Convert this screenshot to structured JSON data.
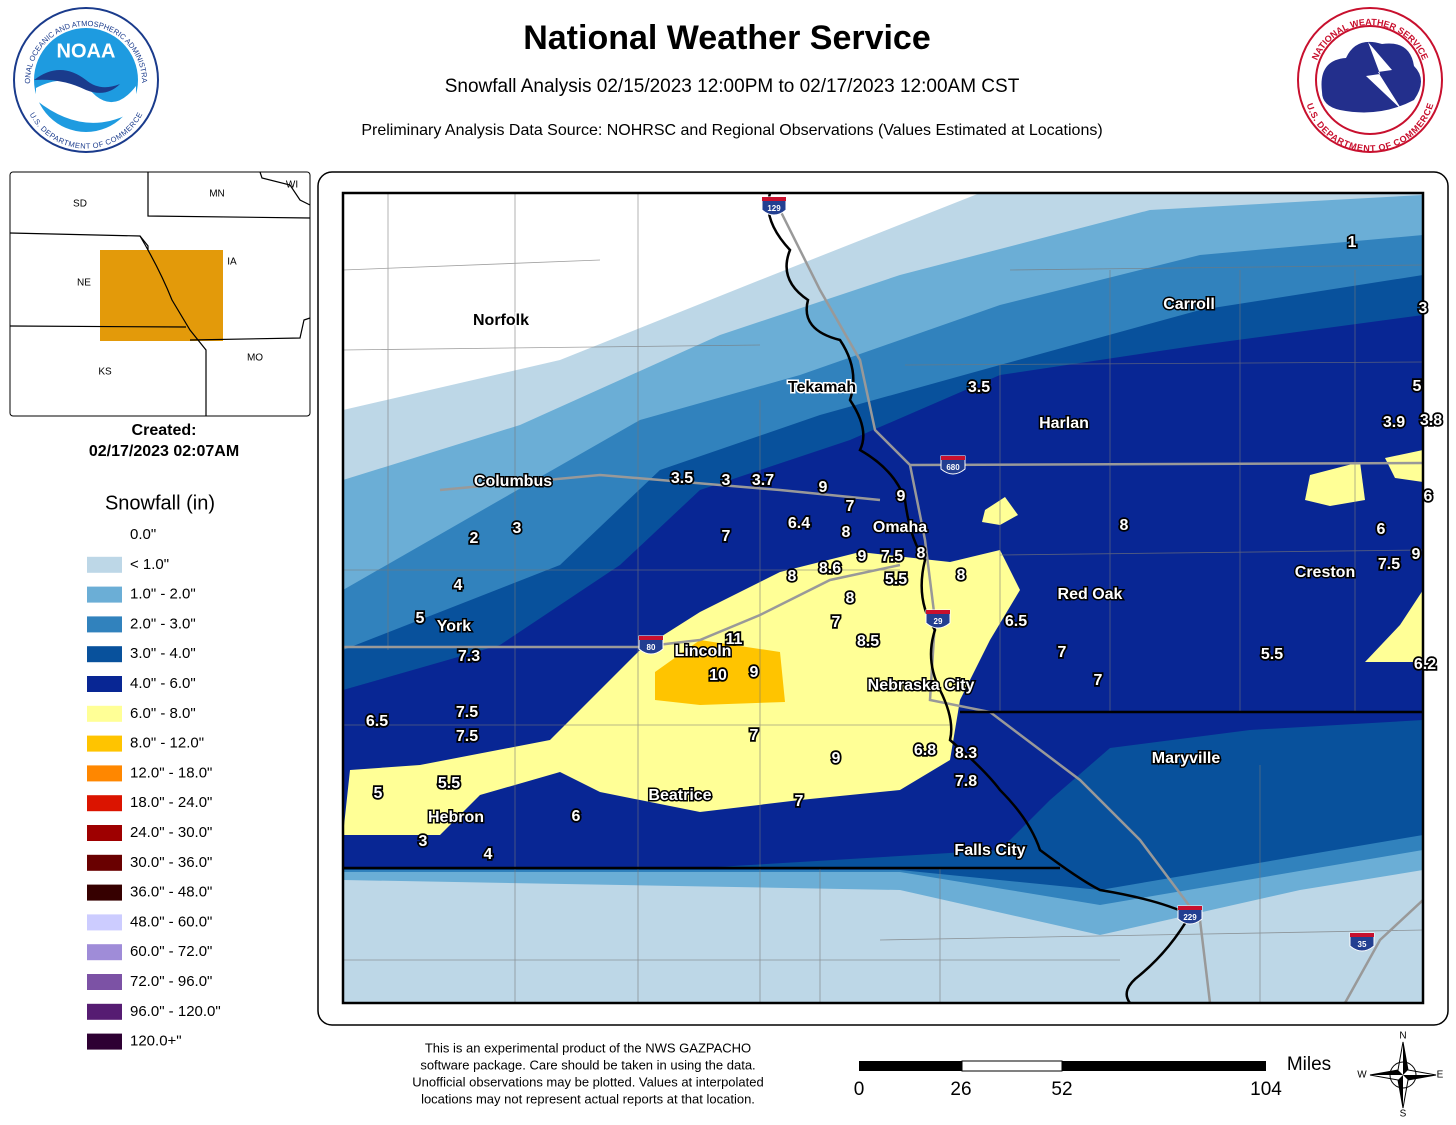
{
  "header": {
    "title": "National Weather Service",
    "subtitle": "Snowfall Analysis 02/15/2023 12:00PM to 02/17/2023 12:00AM CST",
    "source": "Preliminary Analysis Data Source: NOHRSC and Regional Observations (Values Estimated at Locations)"
  },
  "noaa_logo": {
    "name": "NOAA",
    "ring_top": "NATIONAL OCEANIC AND ATMOSPHERIC ADMINISTRATION",
    "ring_bottom": "U.S. DEPARTMENT OF COMMERCE"
  },
  "nws_logo": {
    "ring_top": "NATIONAL WEATHER SERVICE",
    "ring_bottom": "U.S. DEPARTMENT OF COMMERCE"
  },
  "inset": {
    "states": [
      "SD",
      "MN",
      "WI",
      "NE",
      "IA",
      "KS",
      "MO"
    ]
  },
  "created": {
    "label": "Created:",
    "time": "02/17/2023 02:07AM"
  },
  "legend": {
    "title": "Snowfall (in)",
    "items": [
      {
        "label": "0.0\"",
        "color": "#ffffff"
      },
      {
        "label": "< 1.0\"",
        "color": "#bdd7e7"
      },
      {
        "label": "1.0\" - 2.0\"",
        "color": "#6baed6"
      },
      {
        "label": "2.0\" - 3.0\"",
        "color": "#3182bd"
      },
      {
        "label": "3.0\" - 4.0\"",
        "color": "#08519c"
      },
      {
        "label": "4.0\" - 6.0\"",
        "color": "#082694"
      },
      {
        "label": "6.0\" - 8.0\"",
        "color": "#ffff96"
      },
      {
        "label": "8.0\" - 12.0\"",
        "color": "#ffc400"
      },
      {
        "label": "12.0\" - 18.0\"",
        "color": "#ff8700"
      },
      {
        "label": "18.0\" - 24.0\"",
        "color": "#db1400"
      },
      {
        "label": "24.0\" - 30.0\"",
        "color": "#9e0000"
      },
      {
        "label": "30.0\" - 36.0\"",
        "color": "#690000"
      },
      {
        "label": "36.0\" - 48.0\"",
        "color": "#360000"
      },
      {
        "label": "48.0\" - 60.0\"",
        "color": "#ccccff"
      },
      {
        "label": "60.0\" - 72.0\"",
        "color": "#9f8cd8"
      },
      {
        "label": "72.0\" - 96.0\"",
        "color": "#7c52a5"
      },
      {
        "label": "96.0\" - 120.0\"",
        "color": "#561c72"
      },
      {
        "label": "120.0+\"",
        "color": "#2e0033"
      }
    ]
  },
  "cities": [
    "Norfolk",
    "Carroll",
    "Tekamah",
    "Harlan",
    "Columbus",
    "Omaha",
    "Red Oak",
    "Creston",
    "York",
    "Lincoln",
    "Nebraska City",
    "Maryville",
    "Beatrice",
    "Hebron",
    "Falls City"
  ],
  "interstates": [
    "129",
    "680",
    "29",
    "80",
    "229",
    "35"
  ],
  "observations": [
    "1",
    "3",
    "3.5",
    "5",
    "3.9",
    "3.8",
    "6",
    "3.5",
    "3",
    "3.7",
    "9",
    "7",
    "9",
    "6.4",
    "8",
    "8",
    "6",
    "9",
    "7.5",
    "2",
    "3",
    "7",
    "9",
    "7.5",
    "8",
    "8.6",
    "8",
    "5.5",
    "8",
    "4",
    "8",
    "5",
    "7",
    "6.5",
    "11",
    "8.5",
    "7",
    "5.5",
    "6.2",
    "7.3",
    "10",
    "9",
    "7",
    "6.5",
    "7.5",
    "7.5",
    "7",
    "6.8",
    "8.3",
    "9",
    "7.8",
    "5.5",
    "5",
    "6",
    "7",
    "3",
    "4"
  ],
  "disclaimer": [
    "This is an experimental product of the NWS GAZPACHO",
    "software package. Care should be taken in using the data.",
    "Unofficial observations may be plotted. Values at interpolated",
    "locations may not represent actual reports at that location."
  ],
  "scale": {
    "unit": "Miles",
    "ticks": [
      "0",
      "26",
      "52",
      "104"
    ]
  },
  "compass": [
    "N",
    "E",
    "S",
    "W"
  ]
}
